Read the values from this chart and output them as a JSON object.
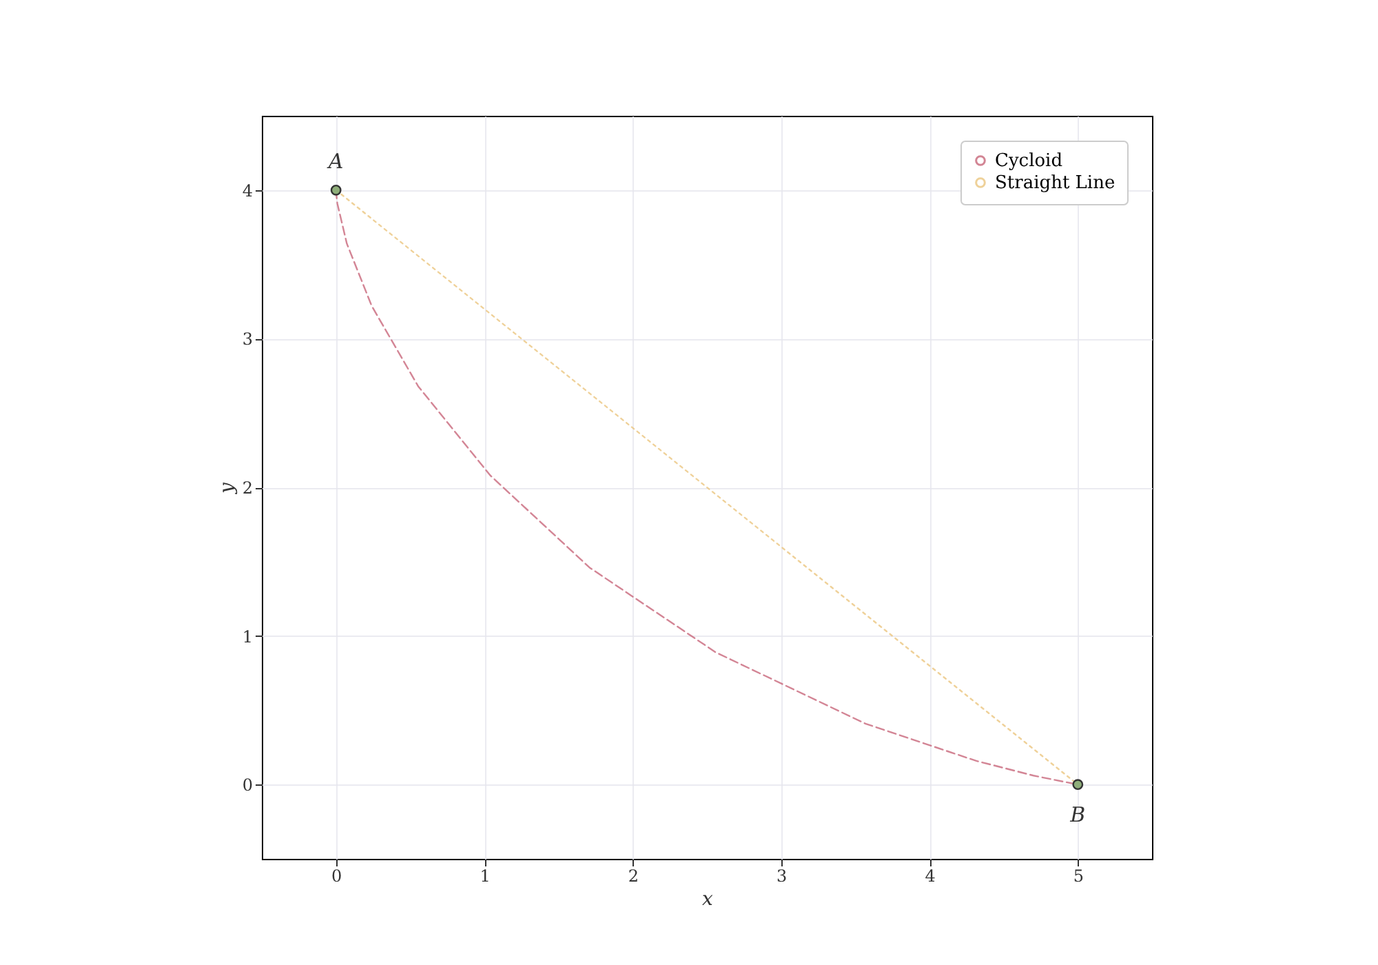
{
  "chart_data": {
    "type": "line",
    "xlabel": "x",
    "ylabel": "y",
    "xlim": [
      -0.5,
      5.5
    ],
    "ylim": [
      -0.5,
      4.5
    ],
    "xticks": [
      0,
      1,
      2,
      3,
      4,
      5
    ],
    "yticks": [
      0,
      1,
      2,
      3,
      4
    ],
    "grid": true,
    "legend": "top right",
    "series": [
      {
        "name": "Cycloid",
        "color": "#c8677a",
        "line_style": "dashed",
        "x": [
          0,
          0.001,
          0.009,
          0.073,
          0.241,
          0.554,
          1.04,
          1.709,
          2.559,
          3.568,
          4.313,
          4.702,
          5
        ],
        "values": [
          4,
          3.98,
          3.91,
          3.64,
          3.22,
          2.68,
          2.08,
          1.46,
          0.89,
          0.41,
          0.16,
          0.06,
          0
        ]
      },
      {
        "name": "Straight Line",
        "color": "#ebc680",
        "line_style": "dotted",
        "x": [
          0,
          5
        ],
        "values": [
          4,
          0
        ]
      },
      {
        "type": "scatter",
        "color": "#8fae7a",
        "marker": "circle",
        "x": [
          0,
          5
        ],
        "values": [
          4,
          0
        ]
      }
    ],
    "annotations": [
      {
        "text": "A",
        "x": 0,
        "y": 4
      },
      {
        "text": "B",
        "x": 5,
        "y": 0
      }
    ]
  }
}
